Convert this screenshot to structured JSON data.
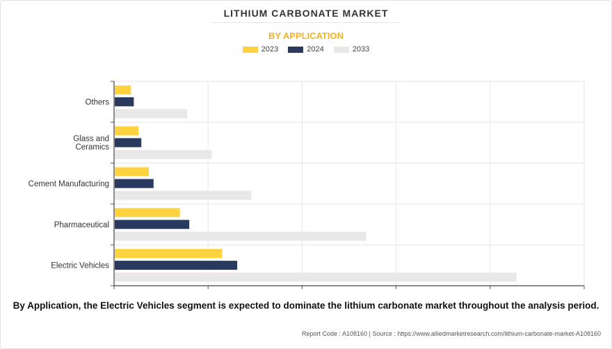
{
  "header": {
    "title": "LITHIUM CARBONATE MARKET",
    "subtitle": "BY APPLICATION"
  },
  "chart_data": {
    "type": "bar",
    "orientation": "horizontal",
    "categories": [
      "Others",
      "Glass and Ceramics",
      "Cement Manufacturing",
      "Pharmaceutical",
      "Electric Vehicles"
    ],
    "category_lines": [
      [
        "Others"
      ],
      [
        "Glass and",
        "Ceramics"
      ],
      [
        "Cement Manufacturing"
      ],
      [
        "Pharmaceutical"
      ],
      [
        "Electric Vehicles"
      ]
    ],
    "series": [
      {
        "name": "2023",
        "color": "#ffd23f",
        "values": [
          0.9,
          1.3,
          1.85,
          3.5,
          5.75
        ]
      },
      {
        "name": "2024",
        "color": "#2a3a5e",
        "values": [
          1.05,
          1.45,
          2.1,
          4.0,
          6.55
        ]
      },
      {
        "name": "2033",
        "color": "#e8e8e8",
        "values": [
          3.9,
          5.2,
          7.3,
          13.4,
          21.4
        ]
      }
    ],
    "xlim": [
      0,
      25
    ],
    "grid": true,
    "legend_position": "top-center"
  },
  "footer": {
    "caption": "By Application, the Electric Vehicles segment is expected to dominate the lithium carbonate market throughout the analysis period.",
    "source": "Report Code : A108160  |  Source : https://www.alliedmarketresearch.com/lithium-carbonate-market-A108160"
  }
}
